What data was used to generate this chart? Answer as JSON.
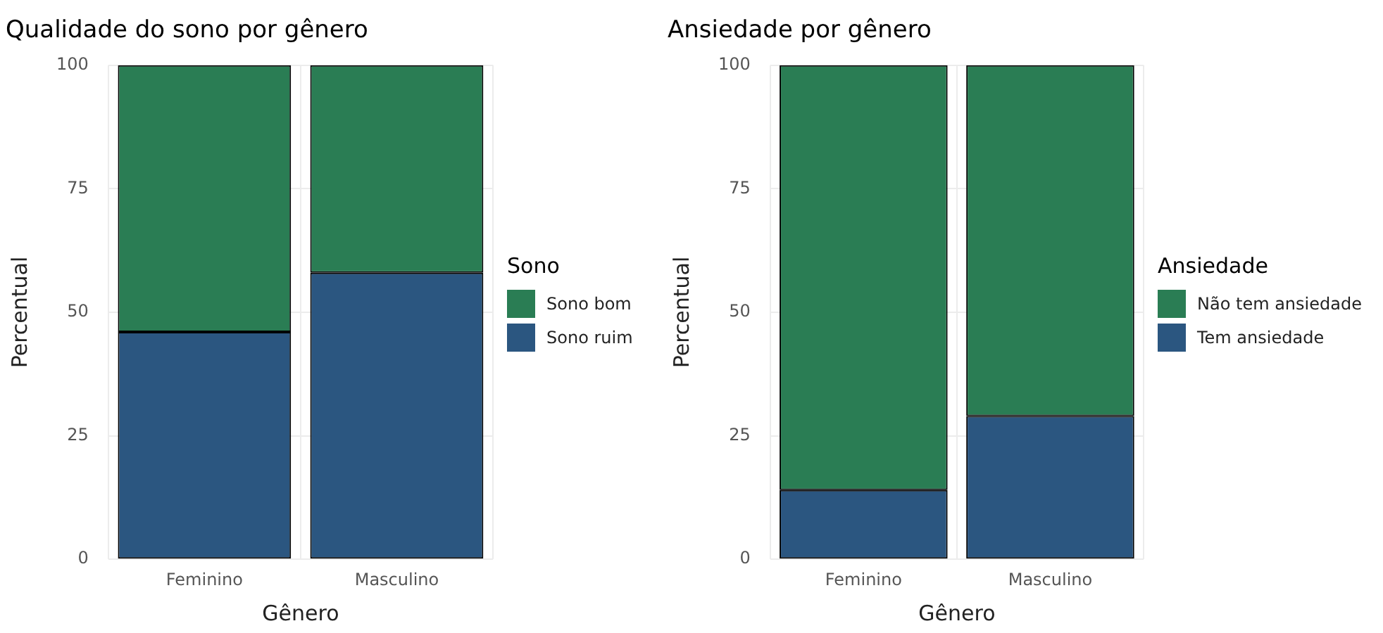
{
  "chart_data": [
    {
      "type": "bar",
      "title": "Qualidade do sono por gênero",
      "xlabel": "Gênero",
      "ylabel": "Percentual",
      "legend_title": "Sono",
      "categories": [
        "Feminino",
        "Masculino"
      ],
      "stacked": true,
      "ylim": [
        0,
        100
      ],
      "yticks": [
        0,
        25,
        50,
        75,
        100
      ],
      "grid": true,
      "legend": "right",
      "series": [
        {
          "name": "Sono ruim",
          "color": "#2b5680",
          "values": [
            46,
            58
          ]
        },
        {
          "name": "Sono bom",
          "color": "#2a7d54",
          "values": [
            54,
            42
          ]
        }
      ]
    },
    {
      "type": "bar",
      "title": "Ansiedade por gênero",
      "xlabel": "Gênero",
      "ylabel": "Percentual",
      "legend_title": "Ansiedade",
      "categories": [
        "Feminino",
        "Masculino"
      ],
      "stacked": true,
      "ylim": [
        0,
        100
      ],
      "yticks": [
        0,
        25,
        50,
        75,
        100
      ],
      "grid": true,
      "legend": "right",
      "series": [
        {
          "name": "Tem ansiedade",
          "color": "#2b5680",
          "values": [
            14,
            29
          ]
        },
        {
          "name": "Não tem ansiedade",
          "color": "#2a7d54",
          "values": [
            86,
            71
          ]
        }
      ]
    }
  ]
}
